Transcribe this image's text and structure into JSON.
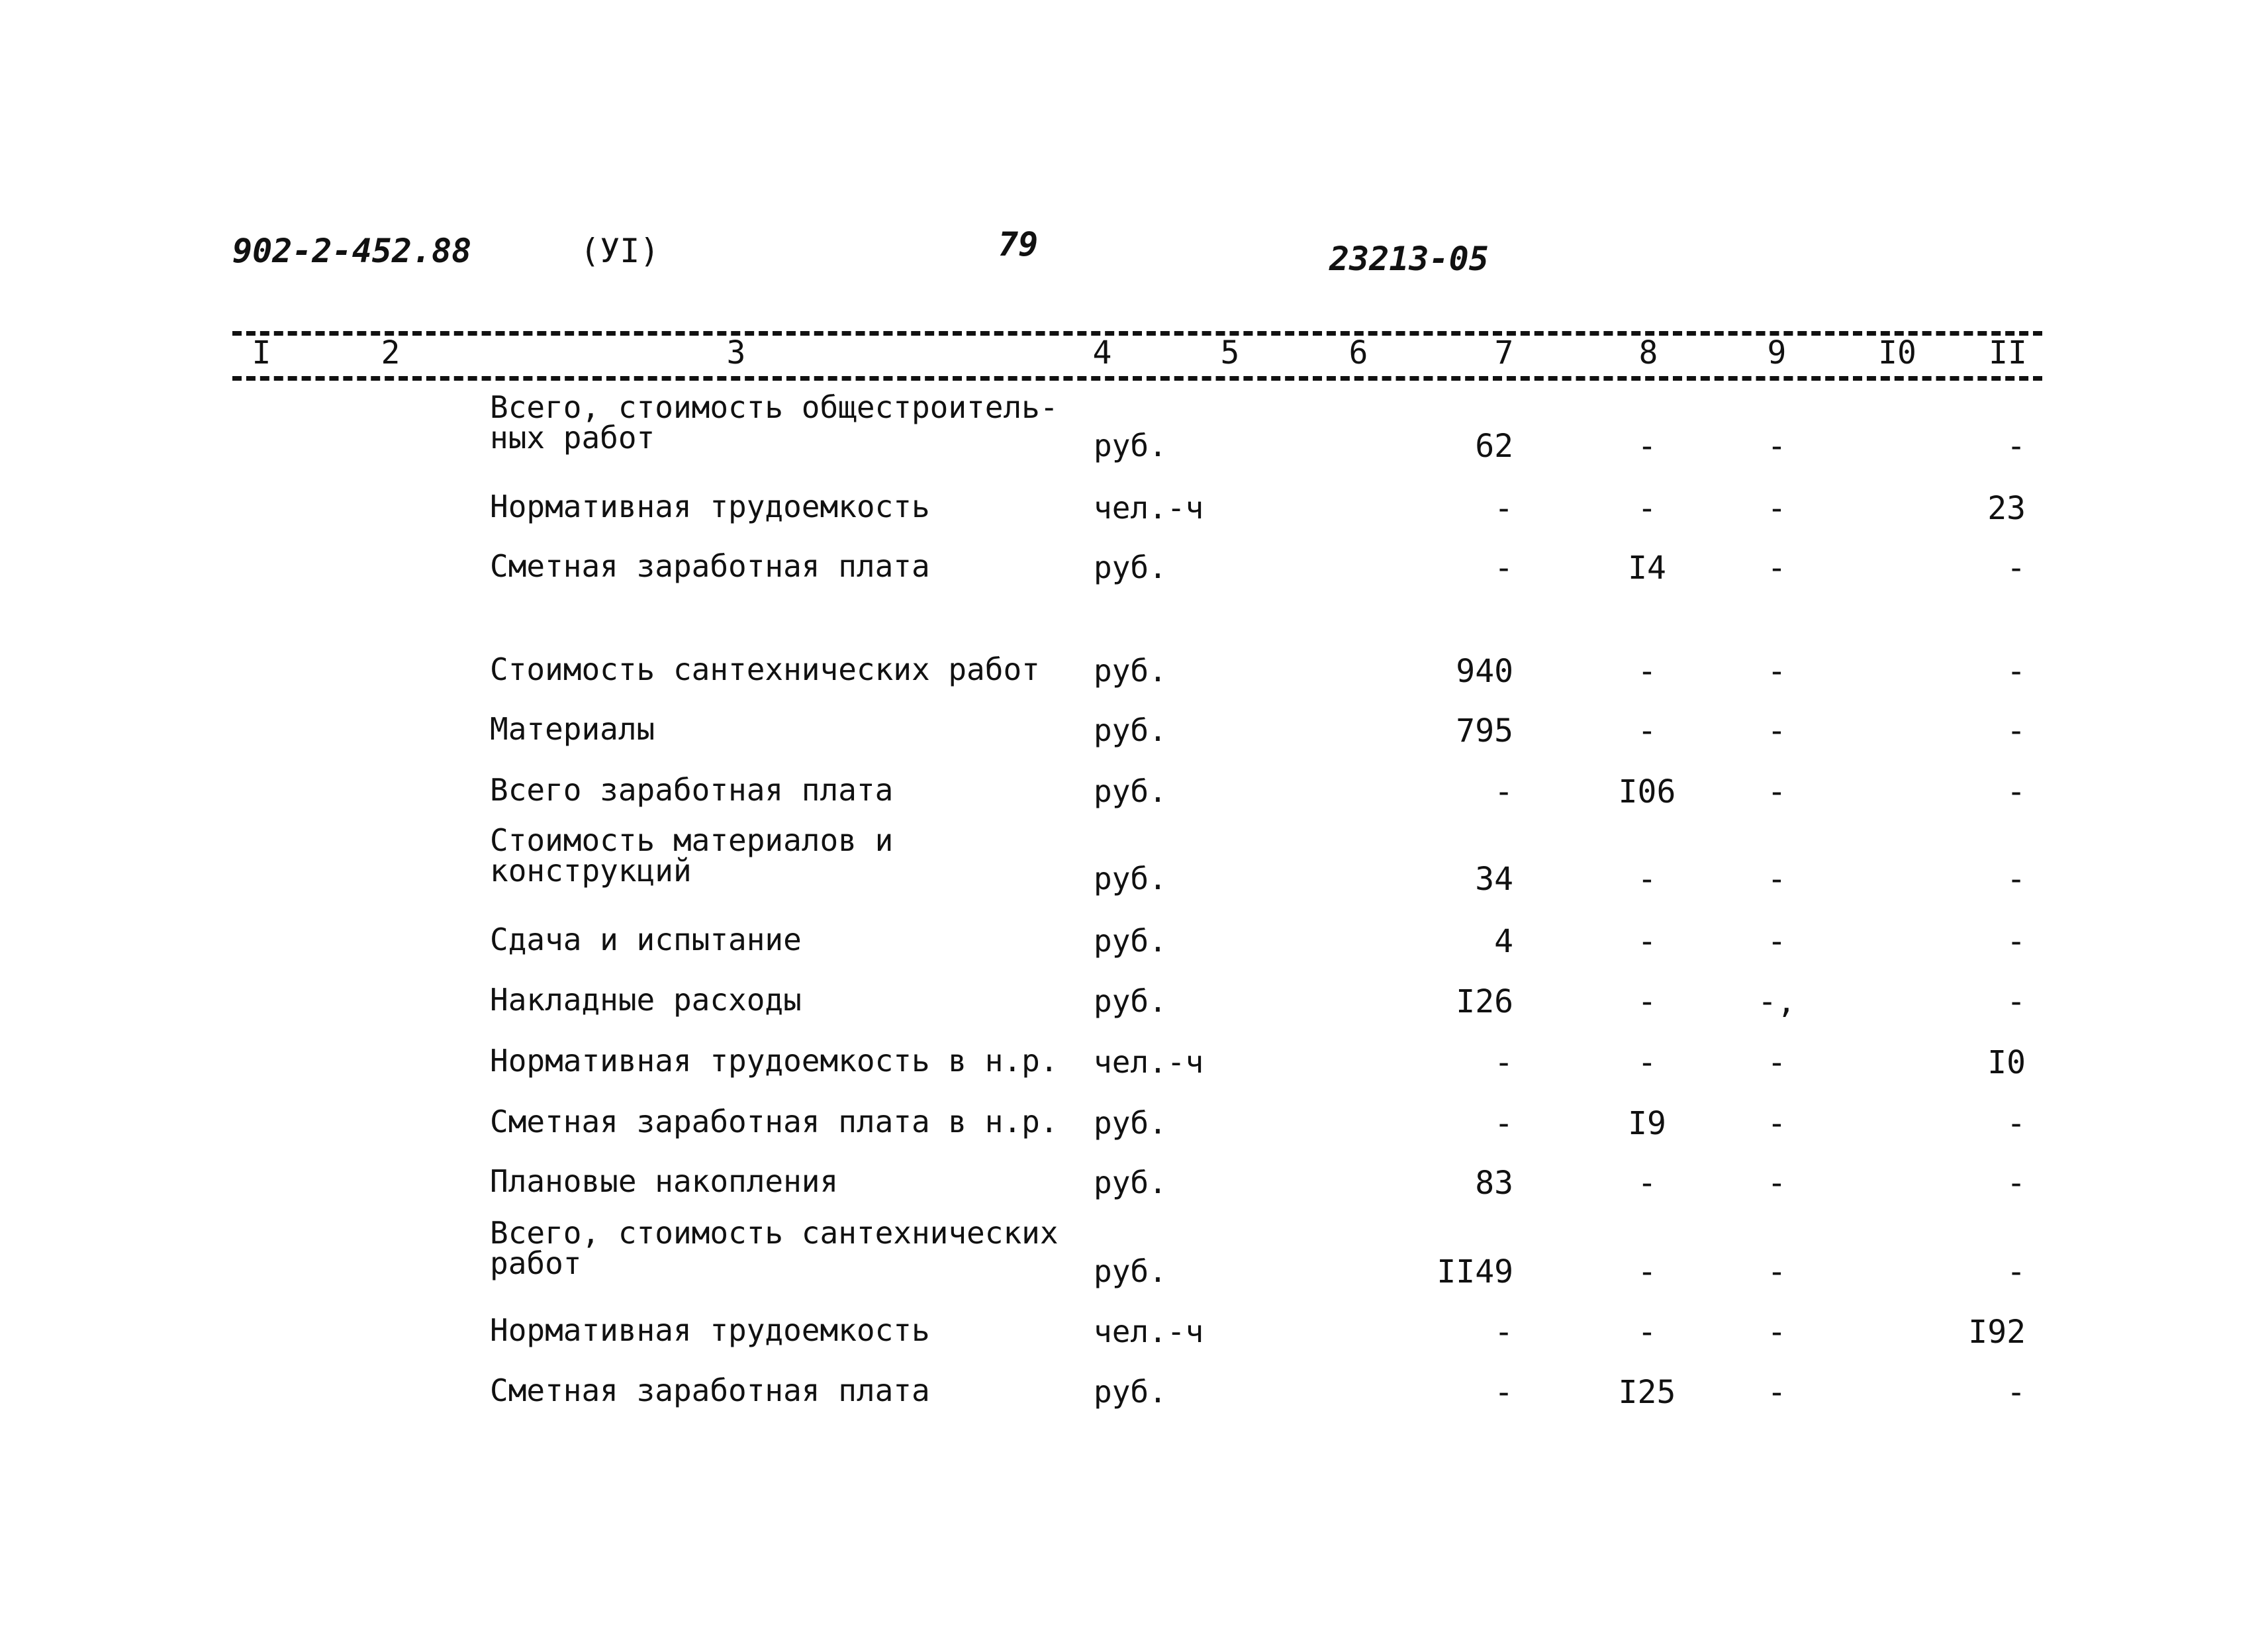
{
  "header": {
    "doc_code": "902-2-452.88",
    "volume": "(УI)",
    "page_number": "79",
    "sheet_code": "23213-05"
  },
  "column_numbers": [
    "I",
    "2",
    "3",
    "4",
    "5",
    "6",
    "7",
    "8",
    "9",
    "I0",
    "II"
  ],
  "rows": [
    {
      "label": "Всего, стоимость общестроитель-\nных работ",
      "unit": "руб.",
      "c7": "62",
      "c8": "-",
      "c9": "-",
      "c11": "-"
    },
    {
      "label": "Нормативная трудоемкость",
      "unit": "чел.-ч",
      "c7": "-",
      "c8": "-",
      "c9": "-",
      "c11": "23"
    },
    {
      "label": "Сметная заработная плата",
      "unit": "руб.",
      "c7": "-",
      "c8": "I4",
      "c9": "-",
      "c11": "-"
    },
    {
      "label": "Стоимость сантехнических работ",
      "unit": "руб.",
      "c7": "940",
      "c8": "-",
      "c9": "-",
      "c11": "-"
    },
    {
      "label": "Материалы",
      "unit": "руб.",
      "c7": "795",
      "c8": "-",
      "c9": "-",
      "c11": "-"
    },
    {
      "label": "Всего заработная плата",
      "unit": "руб.",
      "c7": "-",
      "c8": "I06",
      "c9": "-",
      "c11": "-"
    },
    {
      "label": "Стоимость материалов и\nконструкций",
      "unit": "руб.",
      "c7": "34",
      "c8": "-",
      "c9": "-",
      "c11": "-"
    },
    {
      "label": "Сдача и испытание",
      "unit": "руб.",
      "c7": "4",
      "c8": "-",
      "c9": "-",
      "c11": "-"
    },
    {
      "label": "Накладные расходы",
      "unit": "руб.",
      "c7": "I26",
      "c8": "-",
      "c9": "-,",
      "c11": "-"
    },
    {
      "label": "Нормативная трудоемкость в н.р.",
      "unit": "чел.-ч",
      "c7": "-",
      "c8": "-",
      "c9": "-",
      "c11": "I0"
    },
    {
      "label": "Сметная заработная плата в н.р.",
      "unit": "руб.",
      "c7": "-",
      "c8": "I9",
      "c9": "-",
      "c11": "-"
    },
    {
      "label": "Плановые накопления",
      "unit": "руб.",
      "c7": "83",
      "c8": "-",
      "c9": "-",
      "c11": "-"
    },
    {
      "label": "Всего, стоимость сантехнических\nработ",
      "unit": "руб.",
      "c7": "II49",
      "c8": "-",
      "c9": "-",
      "c11": "-"
    },
    {
      "label": "Нормативная трудоемкость",
      "unit": "чел.-ч",
      "c7": "-",
      "c8": "-",
      "c9": "-",
      "c11": "I92"
    },
    {
      "label": "Сметная заработная плата",
      "unit": "руб.",
      "c7": "-",
      "c8": "I25",
      "c9": "-",
      "c11": "-"
    }
  ]
}
